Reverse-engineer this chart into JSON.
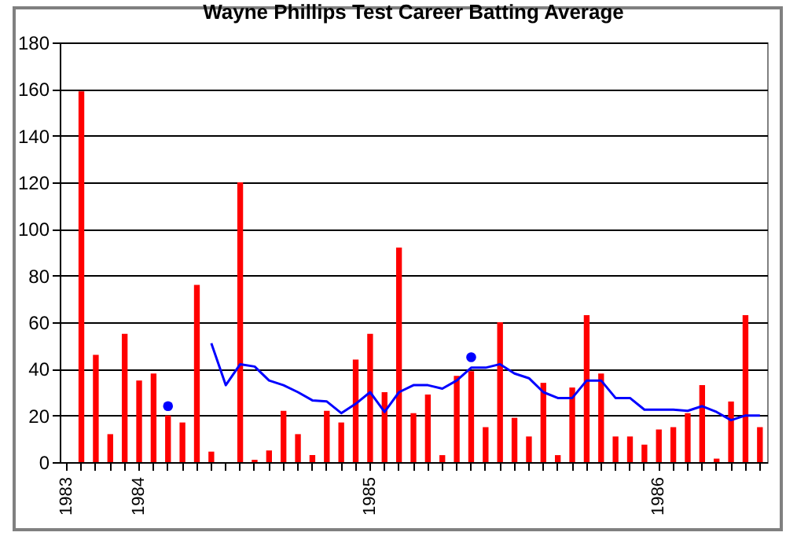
{
  "chart_data": {
    "type": "bar",
    "title": "Wayne Phillips Test Career Batting Average",
    "categories": [
      "1983",
      null,
      null,
      null,
      null,
      "1984",
      null,
      null,
      null,
      null,
      null,
      null,
      null,
      null,
      null,
      null,
      null,
      null,
      null,
      null,
      null,
      "1985",
      null,
      null,
      null,
      null,
      null,
      null,
      null,
      null,
      null,
      null,
      null,
      null,
      null,
      null,
      null,
      null,
      null,
      null,
      null,
      "1986",
      null,
      null,
      null,
      null,
      null,
      null,
      null
    ],
    "series": [
      {
        "color": "#ff0000",
        "values": [
          null,
          159,
          46,
          12,
          55,
          35,
          38,
          20,
          17,
          76,
          4.5,
          0,
          120,
          1,
          5,
          22,
          12,
          3,
          22,
          17,
          44,
          55,
          30,
          92,
          21,
          29,
          3,
          37,
          39,
          15,
          60,
          19,
          11,
          34,
          3,
          32,
          63,
          38,
          11,
          11,
          7.5,
          14,
          15,
          21,
          33,
          1.5,
          26,
          63,
          15
        ]
      },
      {
        "type": "line",
        "color": "#0000ff",
        "values": [
          null,
          null,
          null,
          null,
          null,
          null,
          null,
          null,
          null,
          null,
          51,
          33,
          42,
          41,
          35,
          33,
          30,
          26.5,
          26,
          21,
          25,
          30,
          21.5,
          30,
          33,
          33,
          31.5,
          35,
          40.5,
          40.5,
          42,
          38,
          36,
          30,
          27.5,
          27.5,
          35,
          35,
          27.5,
          27.5,
          22.5,
          22.5,
          22.5,
          22,
          24,
          21.5,
          18,
          20,
          20
        ]
      },
      {
        "type": "scatter",
        "color": "#0000ff",
        "marker": "circle",
        "values": [
          null,
          null,
          null,
          null,
          null,
          null,
          null,
          24,
          null,
          null,
          null,
          null,
          null,
          null,
          null,
          null,
          null,
          null,
          null,
          null,
          null,
          null,
          null,
          null,
          null,
          null,
          null,
          null,
          45,
          null,
          null,
          null,
          null,
          null,
          null,
          null,
          null,
          null,
          null,
          null,
          null,
          null,
          null,
          null,
          null,
          null,
          null,
          null,
          null
        ]
      }
    ],
    "ylim": [
      0,
      180
    ],
    "yticks": [
      0,
      20,
      40,
      60,
      80,
      100,
      120,
      140,
      160,
      180
    ],
    "grid": "y"
  }
}
